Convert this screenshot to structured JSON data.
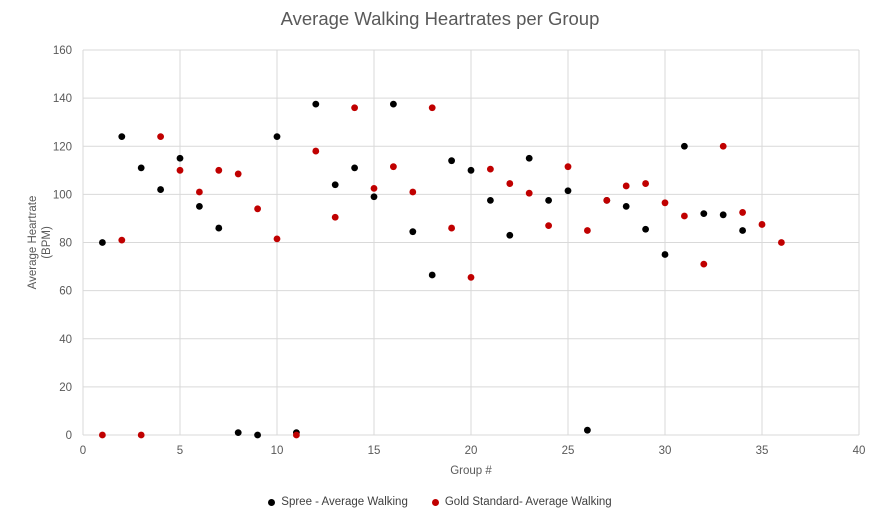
{
  "chart_data": {
    "type": "scatter",
    "title": "Average Walking Heartrates per Group",
    "xlabel": "Group #",
    "ylabel_lines": [
      "Average Heartrate",
      "(BPM)"
    ],
    "xlim": [
      0,
      40
    ],
    "ylim": [
      0,
      160
    ],
    "xticks": [
      0,
      5,
      10,
      15,
      20,
      25,
      30,
      35,
      40
    ],
    "yticks": [
      0,
      20,
      40,
      60,
      80,
      100,
      120,
      140,
      160
    ],
    "grid": true,
    "legend_position": "bottom",
    "series": [
      {
        "name": "Spree - Average Walking",
        "color": "#000000",
        "points": [
          [
            1,
            80
          ],
          [
            2,
            124
          ],
          [
            3,
            111
          ],
          [
            4,
            102
          ],
          [
            5,
            115
          ],
          [
            6,
            95
          ],
          [
            7,
            86
          ],
          [
            8,
            1
          ],
          [
            9,
            0
          ],
          [
            10,
            124
          ],
          [
            11,
            1
          ],
          [
            12,
            137.5
          ],
          [
            13,
            104
          ],
          [
            14,
            111
          ],
          [
            15,
            99
          ],
          [
            16,
            137.5
          ],
          [
            17,
            84.5
          ],
          [
            18,
            66.5
          ],
          [
            19,
            114
          ],
          [
            20,
            110
          ],
          [
            21,
            97.5
          ],
          [
            22,
            83
          ],
          [
            23,
            115
          ],
          [
            24,
            97.5
          ],
          [
            25,
            101.5
          ],
          [
            26,
            2
          ],
          [
            27,
            97.5
          ],
          [
            28,
            95
          ],
          [
            29,
            85.5
          ],
          [
            30,
            75
          ],
          [
            31,
            120
          ],
          [
            32,
            92
          ],
          [
            33,
            91.5
          ],
          [
            34,
            85
          ]
        ]
      },
      {
        "name": "Gold Standard- Average Walking",
        "color": "#c00000",
        "points": [
          [
            1,
            0
          ],
          [
            2,
            81
          ],
          [
            3,
            0
          ],
          [
            4,
            124
          ],
          [
            5,
            110
          ],
          [
            6,
            101
          ],
          [
            7,
            110
          ],
          [
            8,
            108.5
          ],
          [
            9,
            94
          ],
          [
            10,
            81.5
          ],
          [
            11,
            0
          ],
          [
            12,
            118
          ],
          [
            13,
            90.5
          ],
          [
            14,
            136
          ],
          [
            15,
            102.5
          ],
          [
            16,
            111.5
          ],
          [
            17,
            101
          ],
          [
            18,
            136
          ],
          [
            19,
            86
          ],
          [
            20,
            65.5
          ],
          [
            21,
            110.5
          ],
          [
            22,
            104.5
          ],
          [
            23,
            100.5
          ],
          [
            24,
            87
          ],
          [
            25,
            111.5
          ],
          [
            26,
            85
          ],
          [
            27,
            97.5
          ],
          [
            28,
            103.5
          ],
          [
            29,
            104.5
          ],
          [
            30,
            96.5
          ],
          [
            31,
            91
          ],
          [
            32,
            71
          ],
          [
            33,
            120
          ],
          [
            34,
            92.5
          ],
          [
            35,
            87.5
          ],
          [
            36,
            80
          ]
        ]
      }
    ]
  }
}
